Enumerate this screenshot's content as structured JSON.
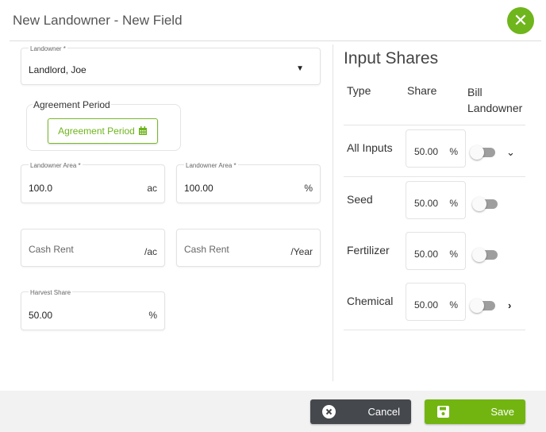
{
  "header": {
    "title": "New Landowner - New Field",
    "close_icon": "close-icon"
  },
  "form": {
    "landowner": {
      "label": "Landowner *",
      "value": "Landlord, Joe"
    },
    "agreement": {
      "legend": "Agreement Period",
      "button": "Agreement Period",
      "icon": "calendar-icon"
    },
    "landowner_area_ac": {
      "label": "Landowner Area *",
      "value": "100.0",
      "unit": "ac"
    },
    "landowner_area_pct": {
      "label": "Landowner Area *",
      "value": "100.00",
      "unit": "%"
    },
    "cash_rent_ac": {
      "placeholder": "Cash Rent",
      "unit": "/ac"
    },
    "cash_rent_year": {
      "placeholder": "Cash Rent",
      "unit": "/Year"
    },
    "harvest_share": {
      "label": "Harvest Share",
      "value": "50.00",
      "unit": "%"
    }
  },
  "input_shares": {
    "title": "Input Shares",
    "columns": [
      "Type",
      "Share",
      "Bill Landowner"
    ],
    "rows": [
      {
        "type": "All Inputs",
        "share": "50.00",
        "unit": "%",
        "bill_landowner": false,
        "chevron": "chevron-down"
      },
      {
        "type": "Seed",
        "share": "50.00",
        "unit": "%",
        "bill_landowner": false
      },
      {
        "type": "Fertilizer",
        "share": "50.00",
        "unit": "%",
        "bill_landowner": false
      },
      {
        "type": "Chemical",
        "share": "50.00",
        "unit": "%",
        "bill_landowner": false,
        "chevron": "chevron-right"
      }
    ]
  },
  "footer": {
    "cancel": "Cancel",
    "save": "Save"
  },
  "colors": {
    "accent": "#6fb51c",
    "cancel_bg": "#45484c"
  }
}
